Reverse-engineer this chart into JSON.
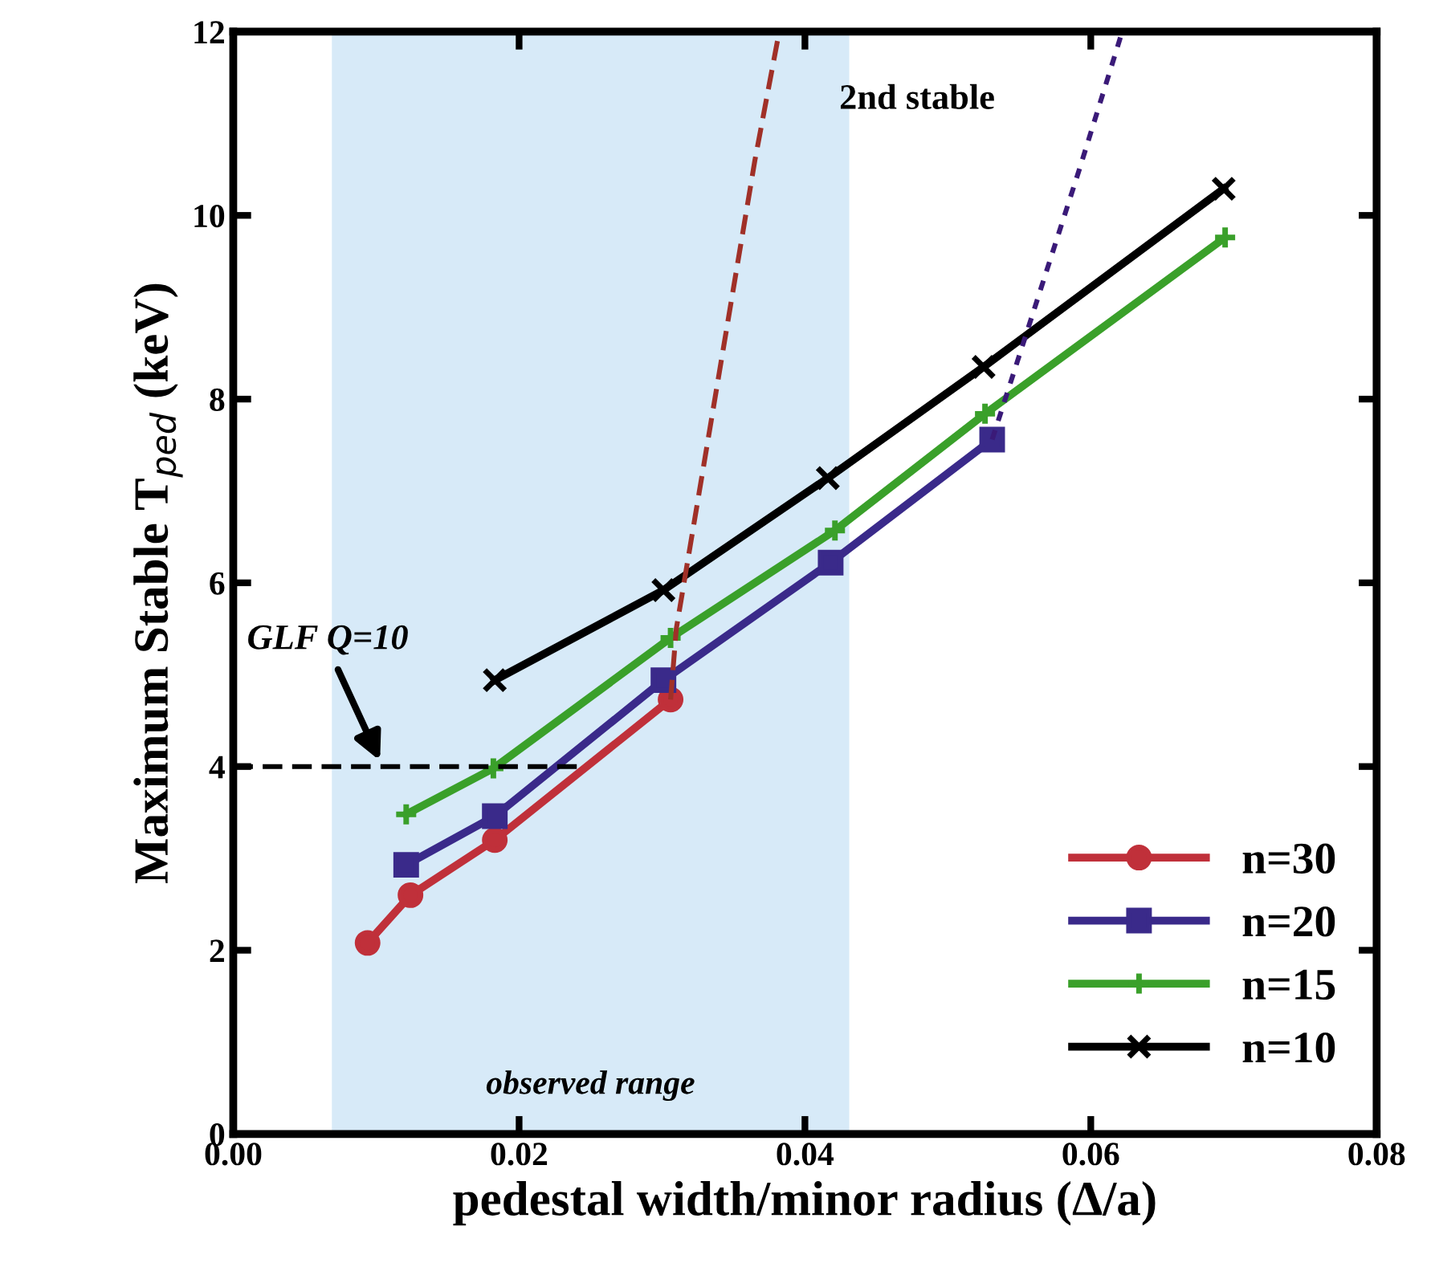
{
  "chart_data": {
    "type": "line",
    "xlabel": "pedestal width/minor radius (Δ/a)",
    "ylabel": "Maximum Stable T$_{ped}$ (keV)",
    "xlim": [
      0,
      0.08
    ],
    "ylim": [
      0,
      12
    ],
    "xticks": [
      {
        "value": 0,
        "label": "0.00"
      },
      {
        "value": 0.02,
        "label": "0.02"
      },
      {
        "value": 0.04,
        "label": "0.04"
      },
      {
        "value": 0.06,
        "label": "0.06"
      },
      {
        "value": 0.08,
        "label": "0.08"
      }
    ],
    "yticks": [
      0,
      2,
      4,
      6,
      8,
      10,
      12
    ],
    "grid": false,
    "legend": "bottom right",
    "series": [
      {
        "name": "n=30",
        "color": "#c0303a",
        "marker": "circle",
        "line_style": "solid",
        "x": [
          0.0094,
          0.0124,
          0.0183,
          0.0306
        ],
        "values": [
          2.08,
          2.6,
          3.2,
          4.73
        ]
      },
      {
        "name": "n=20",
        "color": "#3a2a8a",
        "marker": "square",
        "line_style": "solid",
        "x": [
          0.0121,
          0.0183,
          0.0301,
          0.0418,
          0.0531
        ],
        "values": [
          2.93,
          3.46,
          4.94,
          6.22,
          7.56
        ]
      },
      {
        "name": "n=15",
        "color": "#3aa02a",
        "marker": "plus",
        "line_style": "solid",
        "x": [
          0.0121,
          0.0182,
          0.0306,
          0.0421,
          0.0526,
          0.0694
        ],
        "values": [
          3.48,
          3.98,
          5.4,
          6.57,
          7.84,
          9.76
        ]
      },
      {
        "name": "n=10",
        "color": "#000000",
        "marker": "cross",
        "line_style": "solid",
        "x": [
          0.0183,
          0.0301,
          0.0416,
          0.0525,
          0.0693
        ],
        "values": [
          4.94,
          5.92,
          7.14,
          8.35,
          10.29
        ]
      },
      {
        "color": "#a03028",
        "marker": "none",
        "line_style": "dashed",
        "x": [
          0.0306,
          0.031,
          0.0365,
          0.0382
        ],
        "values": [
          4.73,
          5.5,
          10.6,
          12
        ]
      },
      {
        "color": "#3a1a78",
        "marker": "none",
        "line_style": "dotted",
        "x": [
          0.0531,
          0.0592,
          0.0622
        ],
        "values": [
          7.56,
          10.5,
          12
        ]
      },
      {
        "color": "#000000",
        "marker": "none",
        "line_style": "dashed",
        "x": [
          0,
          0.0244
        ],
        "values": [
          4,
          4
        ]
      }
    ],
    "bands": [
      {
        "axis": "x",
        "from": 0.0069,
        "to": 0.0431,
        "label": "observed range",
        "color": "#bcdcf4"
      }
    ],
    "annotations": [
      "GLF Q=10",
      "2nd stable"
    ]
  }
}
